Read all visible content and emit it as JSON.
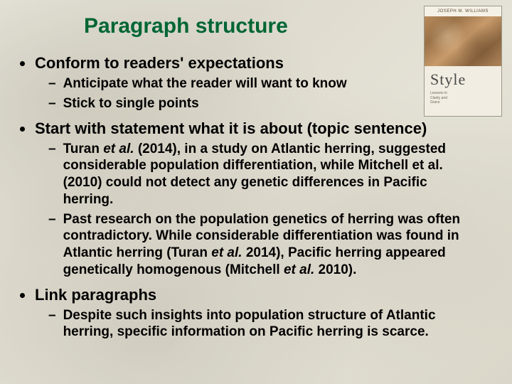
{
  "title": "Paragraph structure",
  "book": {
    "author": "JOSEPH M. WILLIAMS",
    "title": "Style",
    "subtitle1": "Lessons in",
    "subtitle2": "Clarity and",
    "subtitle3": "Grace"
  },
  "bullets": [
    {
      "text": "Conform to readers' expectations",
      "subs": [
        {
          "text": "Anticipate what the reader will want to know"
        },
        {
          "text": "Stick to single points"
        }
      ]
    },
    {
      "text": "Start with statement what it is about (topic sentence)",
      "subs": [
        {
          "html": "Turan <span class='et-al'>et al.</span> (2014), in a study on Atlantic herring, suggested considerable population differentiation, while Mitchell et al. (2010) could not detect any genetic differences in Pacific herring."
        },
        {
          "html": "Past research on the population genetics of herring was often contradictory. While considerable differentiation was found in Atlantic herring (Turan <span class='et-al'>et al.</span> 2014), Pacific herring appeared genetically homogenous (Mitchell <span class='et-al'>et al.</span> 2010)."
        }
      ]
    },
    {
      "text": "Link paragraphs",
      "subs": [
        {
          "text": "Despite such insights into population structure of Atlantic herring, specific information on Pacific herring is scarce."
        }
      ]
    }
  ],
  "colors": {
    "title": "#006633",
    "text": "#000000",
    "background": "#e8e6dc"
  }
}
